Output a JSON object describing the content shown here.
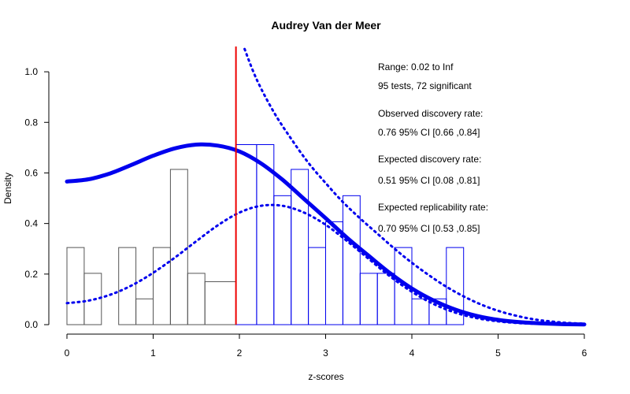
{
  "chart_data": {
    "type": "histogram-with-density",
    "title": "Audrey Van der Meer",
    "xlabel": "z-scores",
    "ylabel": "Density",
    "xlim": [
      0,
      6
    ],
    "ylim": [
      0,
      1.1
    ],
    "x_ticks": [
      "0",
      "1",
      "2",
      "3",
      "4",
      "5",
      "6"
    ],
    "y_ticks": [
      "0.0",
      "0.2",
      "0.4",
      "0.6",
      "0.8",
      "1.0"
    ],
    "significance_threshold": 1.96,
    "bin_width": 0.2,
    "bins_nonsignificant": [
      {
        "x0": 0.0,
        "x1": 0.2,
        "density": 0.305
      },
      {
        "x0": 0.2,
        "x1": 0.4,
        "density": 0.203
      },
      {
        "x0": 0.4,
        "x1": 0.6,
        "density": 0.0
      },
      {
        "x0": 0.6,
        "x1": 0.8,
        "density": 0.305
      },
      {
        "x0": 0.8,
        "x1": 1.0,
        "density": 0.102
      },
      {
        "x0": 1.0,
        "x1": 1.2,
        "density": 0.305
      },
      {
        "x0": 1.2,
        "x1": 1.4,
        "density": 0.614
      },
      {
        "x0": 1.4,
        "x1": 1.6,
        "density": 0.203
      },
      {
        "x0": 1.6,
        "x1": 1.96,
        "density": 0.17
      }
    ],
    "bins_significant": [
      {
        "x0": 1.96,
        "x1": 2.2,
        "density": 0.712
      },
      {
        "x0": 2.2,
        "x1": 2.4,
        "density": 0.712
      },
      {
        "x0": 2.4,
        "x1": 2.6,
        "density": 0.51
      },
      {
        "x0": 2.6,
        "x1": 2.8,
        "density": 0.614
      },
      {
        "x0": 2.8,
        "x1": 3.0,
        "density": 0.305
      },
      {
        "x0": 3.0,
        "x1": 3.2,
        "density": 0.407
      },
      {
        "x0": 3.2,
        "x1": 3.4,
        "density": 0.51
      },
      {
        "x0": 3.4,
        "x1": 3.6,
        "density": 0.203
      },
      {
        "x0": 3.6,
        "x1": 3.8,
        "density": 0.203
      },
      {
        "x0": 3.8,
        "x1": 4.0,
        "density": 0.305
      },
      {
        "x0": 4.0,
        "x1": 4.2,
        "density": 0.102
      },
      {
        "x0": 4.2,
        "x1": 4.4,
        "density": 0.102
      },
      {
        "x0": 4.4,
        "x1": 4.6,
        "density": 0.305
      }
    ],
    "curves": {
      "fitted": [
        [
          0.0,
          0.566
        ],
        [
          0.25,
          0.575
        ],
        [
          0.5,
          0.598
        ],
        [
          0.75,
          0.632
        ],
        [
          1.0,
          0.668
        ],
        [
          1.25,
          0.697
        ],
        [
          1.5,
          0.712
        ],
        [
          1.75,
          0.708
        ],
        [
          2.0,
          0.685
        ],
        [
          2.25,
          0.638
        ],
        [
          2.5,
          0.573
        ],
        [
          2.75,
          0.497
        ],
        [
          3.0,
          0.421
        ],
        [
          3.25,
          0.343
        ],
        [
          3.5,
          0.272
        ],
        [
          3.75,
          0.203
        ],
        [
          4.0,
          0.143
        ],
        [
          4.25,
          0.096
        ],
        [
          4.5,
          0.06
        ],
        [
          4.75,
          0.035
        ],
        [
          5.0,
          0.019
        ],
        [
          5.25,
          0.01
        ],
        [
          5.5,
          0.005
        ],
        [
          5.75,
          0.002
        ],
        [
          6.0,
          0.001
        ]
      ],
      "ci_lower": [
        [
          0.0,
          0.085
        ],
        [
          0.25,
          0.095
        ],
        [
          0.5,
          0.118
        ],
        [
          0.75,
          0.155
        ],
        [
          1.0,
          0.205
        ],
        [
          1.25,
          0.265
        ],
        [
          1.5,
          0.33
        ],
        [
          1.75,
          0.393
        ],
        [
          2.0,
          0.443
        ],
        [
          2.25,
          0.47
        ],
        [
          2.5,
          0.47
        ],
        [
          2.75,
          0.443
        ],
        [
          3.0,
          0.395
        ],
        [
          3.25,
          0.33
        ],
        [
          3.5,
          0.26
        ],
        [
          3.75,
          0.19
        ],
        [
          4.0,
          0.13
        ],
        [
          4.25,
          0.082
        ],
        [
          4.5,
          0.048
        ],
        [
          4.75,
          0.026
        ],
        [
          5.0,
          0.013
        ],
        [
          5.25,
          0.006
        ],
        [
          5.5,
          0.003
        ],
        [
          6.0,
          0.0005
        ]
      ],
      "ci_upper": [
        [
          2.06,
          1.09
        ],
        [
          2.2,
          0.97
        ],
        [
          2.4,
          0.84
        ],
        [
          2.6,
          0.735
        ],
        [
          2.8,
          0.64
        ],
        [
          3.0,
          0.56
        ],
        [
          3.2,
          0.485
        ],
        [
          3.4,
          0.42
        ],
        [
          3.6,
          0.36
        ],
        [
          3.8,
          0.3
        ],
        [
          4.0,
          0.245
        ],
        [
          4.2,
          0.195
        ],
        [
          4.4,
          0.15
        ],
        [
          4.6,
          0.112
        ],
        [
          4.8,
          0.08
        ],
        [
          5.0,
          0.055
        ],
        [
          5.2,
          0.036
        ],
        [
          5.4,
          0.022
        ],
        [
          5.6,
          0.013
        ],
        [
          5.8,
          0.007
        ],
        [
          6.0,
          0.004
        ]
      ]
    },
    "colors": {
      "nonsignificant_bars": "#555555",
      "significant_bars": "#0000ee",
      "threshold_line": "#ee0000",
      "curves": "#0000ee",
      "axis": "#000000"
    },
    "annotations": [
      "Range: 0.02 to Inf",
      "95 tests, 72 significant",
      "Observed discovery rate:",
      "0.76  95% CI [0.66 ,0.84]",
      "Expected discovery rate:",
      "0.51  95% CI [0.08 ,0.81]",
      "Expected replicability rate:",
      "0.70  95% CI [0.53 ,0.85]"
    ]
  }
}
